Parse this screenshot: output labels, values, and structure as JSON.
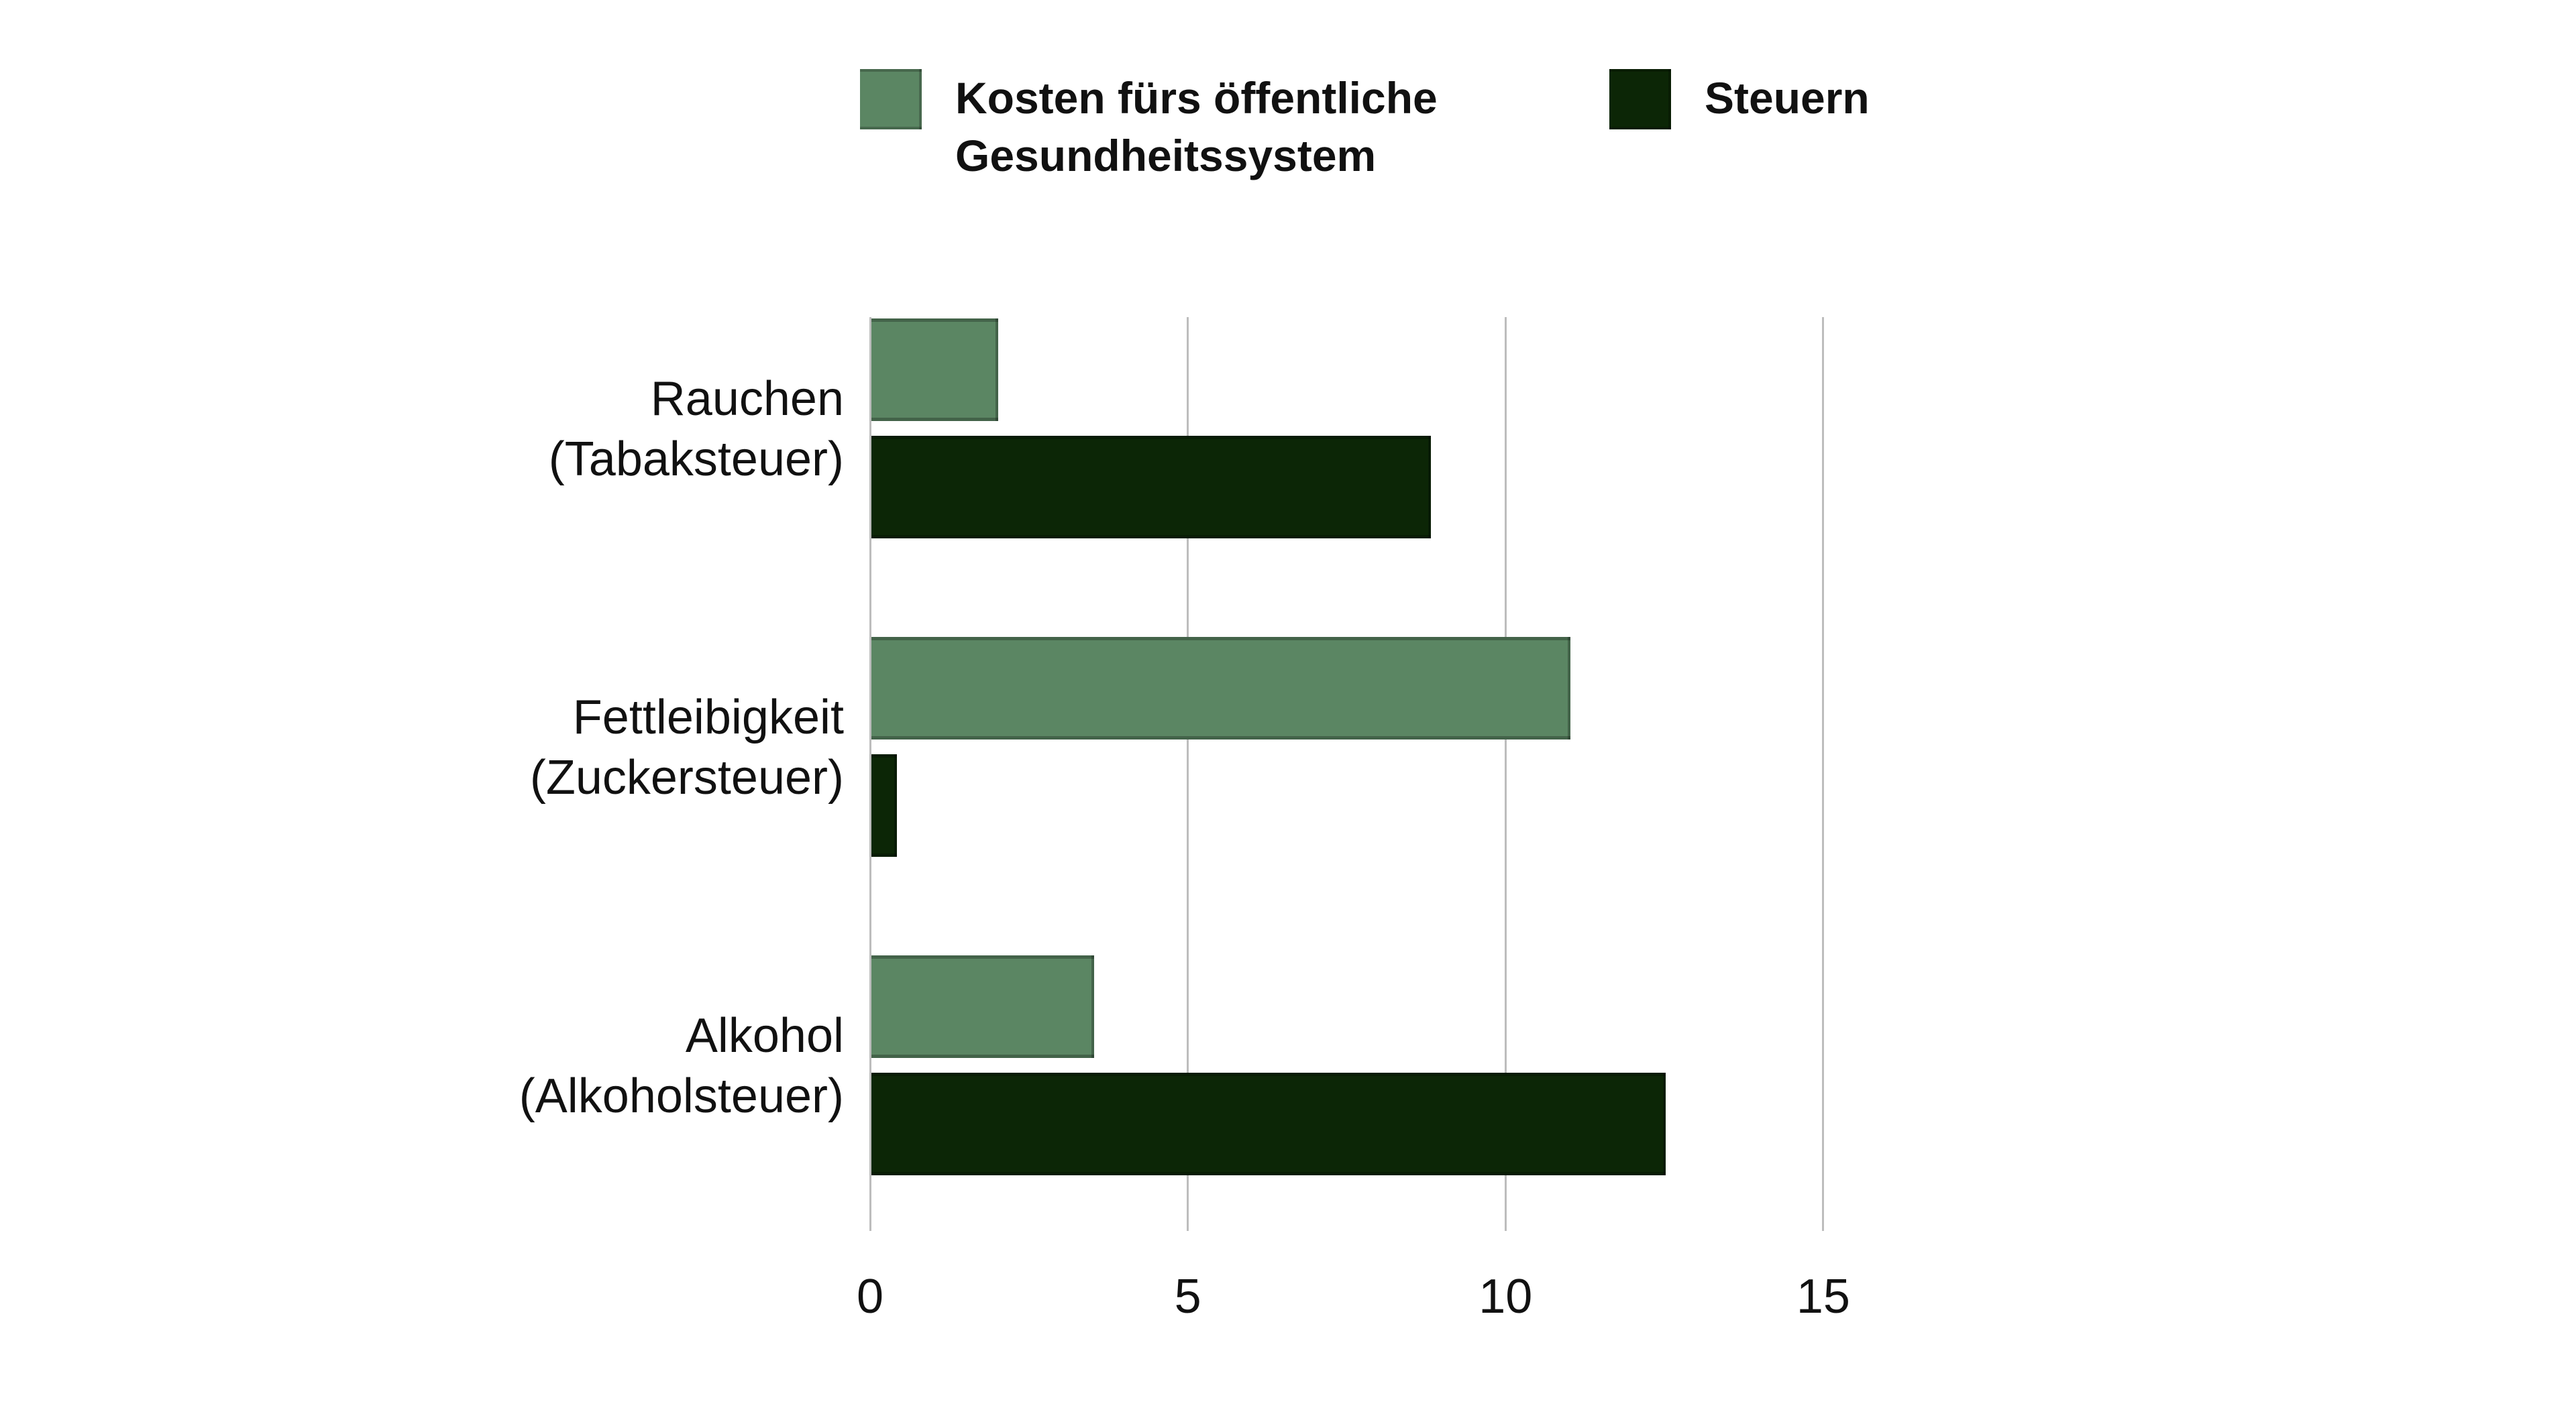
{
  "chart_data": {
    "type": "bar",
    "orientation": "horizontal",
    "title": "",
    "categories": [
      "Rauchen (Tabaksteuer)",
      "Fettleibigkeit (Zuckersteuer)",
      "Alkohol (Alkoholsteuer)"
    ],
    "category_label_lines": [
      [
        "Rauchen",
        "(Tabaksteuer)"
      ],
      [
        "Fettleibigkeit",
        "(Zuckersteuer)"
      ],
      [
        "Alkohol",
        "(Alkoholsteuer)"
      ]
    ],
    "series": [
      {
        "name": "Kosten fürs öffentliche Gesundheitssystem",
        "color": "#5b8663",
        "values": [
          2.0,
          11.0,
          3.5
        ]
      },
      {
        "name": "Steuern",
        "color": "#0c2606",
        "values": [
          8.8,
          0.4,
          12.5
        ]
      }
    ],
    "x_ticks": [
      0,
      5,
      10,
      15
    ],
    "xlim": [
      0,
      15.8
    ],
    "grid": "vertical",
    "legend_position": "top"
  },
  "legend": {
    "items": [
      {
        "lines": [
          "Kosten fürs öffentliche",
          "Gesundheitssystem"
        ]
      },
      {
        "lines": [
          "Steuern"
        ]
      }
    ]
  },
  "colors": {
    "background": "#ffffff",
    "series_kosten": "#5b8663",
    "series_steuern": "#0c2606",
    "gridline": "#bdbdbd",
    "text": "#111111"
  }
}
